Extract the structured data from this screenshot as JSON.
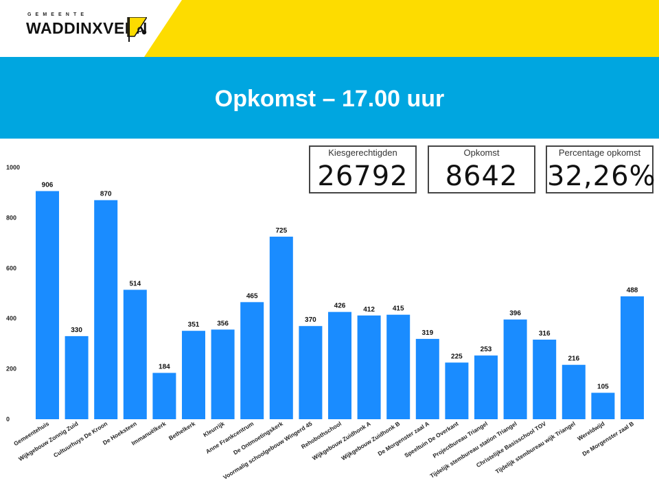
{
  "header": {
    "logo_sub": "GEMEENTE",
    "logo_main": "WADDINXVEEN",
    "brand_yellow": "#fddc00",
    "brand_blue": "#00a6e0"
  },
  "page_title": "Opkomst – 17.00 uur",
  "kpis": [
    {
      "label": "Kiesgerechtigden",
      "value": "26792"
    },
    {
      "label": "Opkomst",
      "value": "8642"
    },
    {
      "label": "Percentage opkomst",
      "value": "32,26%"
    }
  ],
  "chart_data": {
    "type": "bar",
    "title": "",
    "xlabel": "",
    "ylabel": "",
    "ylim": [
      0,
      1000
    ],
    "yticks": [
      0,
      200,
      400,
      600,
      800,
      1000
    ],
    "bar_color": "#1a8cff",
    "categories": [
      "Gemeentehuis",
      "Wijkgebouw Zonnig Zuid",
      "Cultuurhuys De Kroon",
      "De Hoeksteen",
      "Immanuëlkerk",
      "Bethelkerk",
      "Kleurrijk",
      "Anne Frankcentrum",
      "De Ontmoetingskerk",
      "Voormalig schoolgebouw Wingerd 45",
      "Rehobothschool",
      "Wijkgebouw Zuidhonk A",
      "Wijkgebouw Zuidhonk B",
      "De Morgenster zaal A",
      "Speeltuin De Overkant",
      "Projectbureau Triangel",
      "Tijdelijk stembureau station Triangel",
      "Christelijke Basisschool TOV",
      "Tijdelijk stembureau wijk Triangel",
      "Wereldwijd",
      "De Morgenster zaal B"
    ],
    "values": [
      906,
      330,
      870,
      514,
      184,
      351,
      356,
      465,
      725,
      370,
      426,
      412,
      415,
      319,
      225,
      253,
      396,
      316,
      216,
      105,
      488
    ]
  }
}
